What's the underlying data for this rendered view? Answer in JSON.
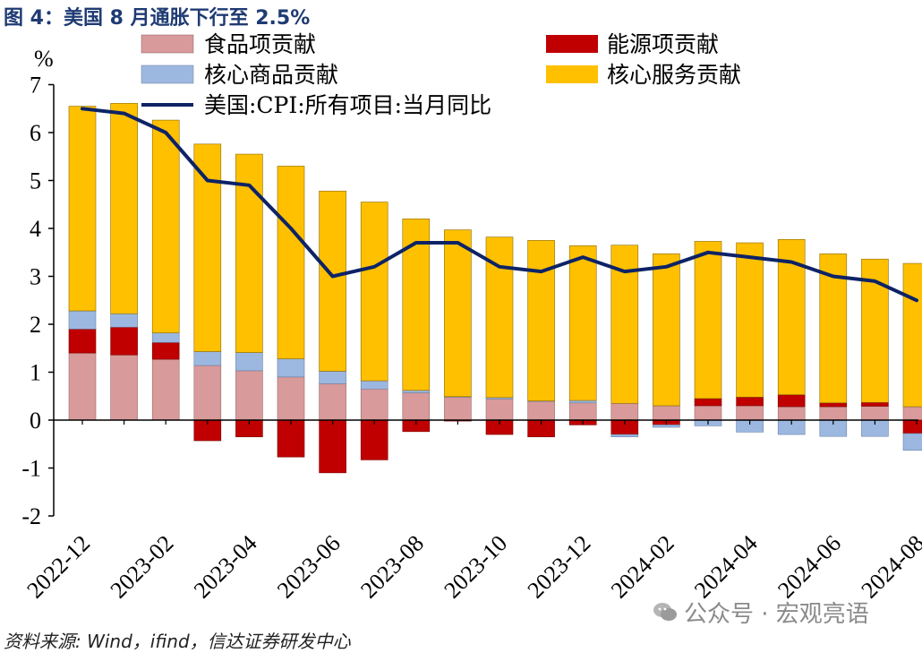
{
  "figure_title": "图 4：美国 8 月通胀下行至 2.5%",
  "source_note": "资料来源: Wind，ifind，信达证券研发中心",
  "watermark": {
    "icon": "wechat-icon",
    "text": "公众号 · 宏观亮语"
  },
  "colors": {
    "food": "#d89a9a",
    "energy": "#c00000",
    "core_goods": "#9cb8e0",
    "core_services": "#ffc000",
    "cpi_line": "#0d2366",
    "title": "#1f3b73"
  },
  "chart_data": {
    "type": "bar",
    "stacked": true,
    "unit_label": "%",
    "categories": [
      "2022-12",
      "2023-01",
      "2023-02",
      "2023-03",
      "2023-04",
      "2023-05",
      "2023-06",
      "2023-07",
      "2023-08",
      "2023-09",
      "2023-10",
      "2023-11",
      "2023-12",
      "2024-01",
      "2024-02",
      "2024-03",
      "2024-04",
      "2024-05",
      "2024-06",
      "2024-07",
      "2024-08"
    ],
    "tick_labels": [
      "2022-12",
      "2023-02",
      "2023-04",
      "2023-06",
      "2023-08",
      "2023-10",
      "2023-12",
      "2024-02",
      "2024-04",
      "2024-06",
      "2024-08"
    ],
    "ylim": [
      -2,
      7
    ],
    "yticks": [
      -2,
      -1,
      0,
      1,
      2,
      3,
      4,
      5,
      6,
      7
    ],
    "series": [
      {
        "name": "食品项贡献",
        "key": "food",
        "type": "bar",
        "values": [
          1.4,
          1.36,
          1.27,
          1.14,
          1.03,
          0.9,
          0.76,
          0.65,
          0.57,
          0.48,
          0.44,
          0.39,
          0.36,
          0.35,
          0.3,
          0.3,
          0.3,
          0.28,
          0.28,
          0.29,
          0.28
        ]
      },
      {
        "name": "能源项贡献",
        "key": "energy",
        "type": "bar",
        "values": [
          0.5,
          0.58,
          0.35,
          -0.43,
          -0.35,
          -0.77,
          -1.1,
          -0.83,
          -0.24,
          -0.02,
          -0.3,
          -0.35,
          -0.1,
          -0.3,
          -0.1,
          0.15,
          0.18,
          0.25,
          0.08,
          0.08,
          -0.28
        ]
      },
      {
        "name": "核心商品贡献",
        "key": "core_goods",
        "type": "bar",
        "values": [
          0.38,
          0.28,
          0.2,
          0.29,
          0.38,
          0.38,
          0.26,
          0.17,
          0.05,
          0.01,
          0.03,
          0.01,
          0.05,
          -0.05,
          -0.05,
          -0.12,
          -0.25,
          -0.3,
          -0.34,
          -0.34,
          -0.35
        ]
      },
      {
        "name": "核心服务贡献",
        "key": "core_services",
        "type": "bar",
        "values": [
          4.27,
          4.39,
          4.44,
          4.33,
          4.14,
          4.02,
          3.76,
          3.73,
          3.58,
          3.48,
          3.35,
          3.35,
          3.23,
          3.3,
          3.17,
          3.28,
          3.22,
          3.24,
          3.11,
          2.99,
          2.99
        ]
      },
      {
        "name": "美国:CPI:所有项目:当月同比",
        "key": "cpi_line",
        "type": "line",
        "values": [
          6.5,
          6.4,
          6.0,
          5.0,
          4.9,
          4.0,
          3.0,
          3.2,
          3.7,
          3.7,
          3.2,
          3.1,
          3.4,
          3.1,
          3.2,
          3.5,
          3.4,
          3.3,
          3.0,
          2.9,
          2.5
        ]
      }
    ]
  }
}
